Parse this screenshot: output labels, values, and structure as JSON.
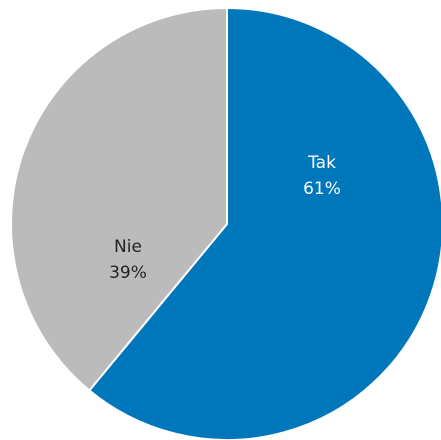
{
  "chart_data": {
    "type": "pie",
    "title": "",
    "slices": [
      {
        "label": "Tak",
        "value": 61,
        "display": "61%",
        "color": "#0077bb",
        "text_color": "#ffffff"
      },
      {
        "label": "Nie",
        "value": 39,
        "display": "39%",
        "color": "#bbbbbb",
        "text_color": "#222222"
      }
    ]
  }
}
